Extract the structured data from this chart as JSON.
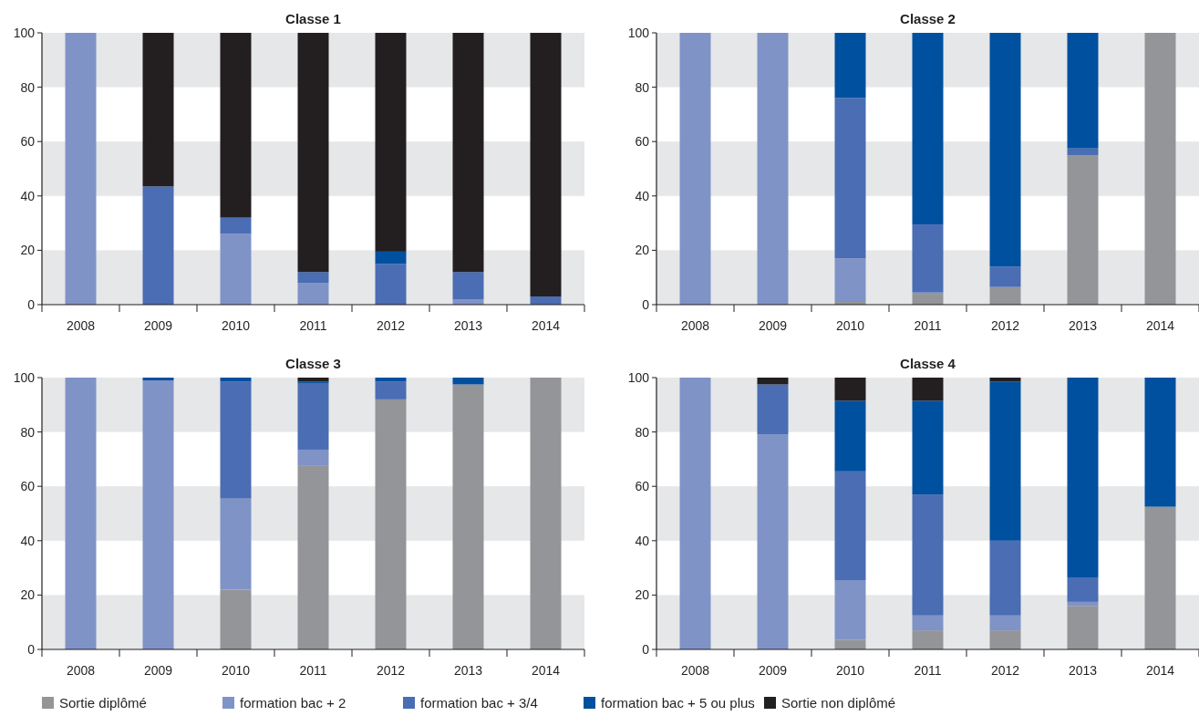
{
  "chart_data": [
    {
      "type": "bar",
      "title": "Classe 1",
      "stacked": true,
      "categories": [
        "2008",
        "2009",
        "2010",
        "2011",
        "2012",
        "2013",
        "2014"
      ],
      "ylim": [
        0,
        100
      ],
      "yticks": [
        0,
        20,
        40,
        60,
        80,
        100
      ],
      "bands": [
        {
          "axis": "y",
          "from": 0,
          "to": 20,
          "color": "#e6e7e8"
        },
        {
          "axis": "y",
          "from": 40,
          "to": 60,
          "color": "#e6e7e8"
        },
        {
          "axis": "y",
          "from": 80,
          "to": 100,
          "color": "#e6e7e8"
        }
      ],
      "series": [
        {
          "color": "#7f93c7",
          "values": [
            100,
            0,
            26,
            8,
            0,
            2,
            0
          ]
        },
        {
          "color": "#4a6db3",
          "values": [
            0,
            43.5,
            6,
            4,
            15,
            10,
            3
          ]
        },
        {
          "color": "#0050a0",
          "values": [
            0,
            0,
            0,
            0,
            4.5,
            0,
            0
          ]
        },
        {
          "color": "#231f20",
          "values": [
            0,
            56.5,
            68,
            88,
            80.5,
            88,
            97
          ]
        }
      ]
    },
    {
      "type": "bar",
      "title": "Classe 2",
      "stacked": true,
      "categories": [
        "2008",
        "2009",
        "2010",
        "2011",
        "2012",
        "2013",
        "2014"
      ],
      "ylim": [
        0,
        100
      ],
      "yticks": [
        0,
        20,
        40,
        60,
        80,
        100
      ],
      "bands": [
        {
          "axis": "y",
          "from": 0,
          "to": 20,
          "color": "#e6e7e8"
        },
        {
          "axis": "y",
          "from": 40,
          "to": 60,
          "color": "#e6e7e8"
        },
        {
          "axis": "y",
          "from": 80,
          "to": 100,
          "color": "#e6e7e8"
        }
      ],
      "series": [
        {
          "color": "#939598",
          "values": [
            0,
            0,
            1,
            4,
            6.5,
            55,
            100
          ]
        },
        {
          "color": "#7f93c7",
          "values": [
            100,
            100,
            16,
            0.5,
            0,
            0,
            0
          ]
        },
        {
          "color": "#4a6db3",
          "values": [
            0,
            0,
            59,
            25,
            7.5,
            2.5,
            0
          ]
        },
        {
          "color": "#0050a0",
          "values": [
            0,
            0,
            24,
            70.5,
            86,
            42.5,
            0
          ]
        }
      ]
    },
    {
      "type": "bar",
      "title": "Classe 3",
      "stacked": true,
      "legend": "bottom",
      "categories": [
        "2008",
        "2009",
        "2010",
        "2011",
        "2012",
        "2013",
        "2014"
      ],
      "ylim": [
        0,
        100
      ],
      "yticks": [
        0,
        20,
        40,
        60,
        80,
        100
      ],
      "bands": [
        {
          "axis": "y",
          "from": 0,
          "to": 20,
          "color": "#e6e7e8"
        },
        {
          "axis": "y",
          "from": 40,
          "to": 60,
          "color": "#e6e7e8"
        },
        {
          "axis": "y",
          "from": 80,
          "to": 100,
          "color": "#e6e7e8"
        }
      ],
      "series": [
        {
          "name": "Sortie diplômé",
          "color": "#939598",
          "values": [
            0,
            0,
            22,
            67.5,
            92,
            97.5,
            100
          ]
        },
        {
          "name": "formation bac + 2",
          "color": "#7f93c7",
          "values": [
            100,
            99,
            33.5,
            6,
            0,
            0,
            0
          ]
        },
        {
          "name": "formation bac + 3/4",
          "color": "#4a6db3",
          "values": [
            0,
            0,
            43,
            24.5,
            6.5,
            0,
            0
          ]
        },
        {
          "name": "formation bac + 5 ou plus",
          "color": "#0050a0",
          "values": [
            0,
            1,
            1.5,
            0.5,
            1.5,
            2.5,
            0
          ]
        },
        {
          "name": "Sortie non diplômé",
          "color": "#231f20",
          "values": [
            0,
            0,
            0,
            1.5,
            0,
            0,
            0
          ]
        }
      ]
    },
    {
      "type": "bar",
      "title": "Classe 4",
      "stacked": true,
      "categories": [
        "2008",
        "2009",
        "2010",
        "2011",
        "2012",
        "2013",
        "2014"
      ],
      "ylim": [
        0,
        100
      ],
      "yticks": [
        0,
        20,
        40,
        60,
        80,
        100
      ],
      "bands": [
        {
          "axis": "y",
          "from": 0,
          "to": 20,
          "color": "#e6e7e8"
        },
        {
          "axis": "y",
          "from": 40,
          "to": 60,
          "color": "#e6e7e8"
        },
        {
          "axis": "y",
          "from": 80,
          "to": 100,
          "color": "#e6e7e8"
        }
      ],
      "series": [
        {
          "color": "#939598",
          "values": [
            0,
            0,
            3.5,
            7,
            7,
            16,
            52.5
          ]
        },
        {
          "color": "#7f93c7",
          "values": [
            100,
            79,
            22,
            5.5,
            5.5,
            1.5,
            0
          ]
        },
        {
          "color": "#4a6db3",
          "values": [
            0,
            18.5,
            40,
            44.5,
            27.5,
            9,
            0
          ]
        },
        {
          "color": "#0050a0",
          "values": [
            0,
            0,
            26,
            34.5,
            58.5,
            73.5,
            47.5
          ]
        },
        {
          "color": "#231f20",
          "values": [
            0,
            2.5,
            8.5,
            8.5,
            1.5,
            0,
            0
          ]
        }
      ]
    }
  ]
}
